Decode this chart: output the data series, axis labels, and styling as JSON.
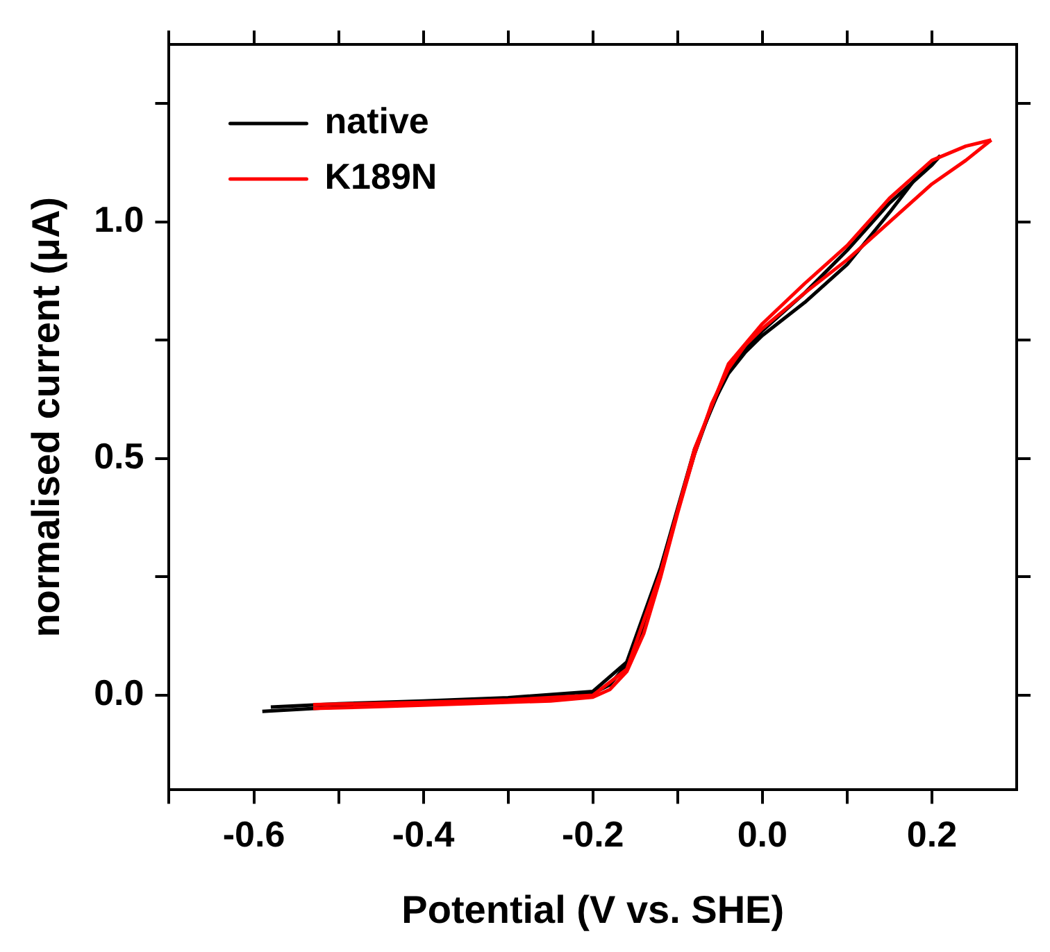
{
  "chart_data": {
    "type": "line",
    "xlabel": "Potential (V vs. SHE)",
    "ylabel": "normalised current (μA)",
    "xlim": [
      -0.7,
      0.3
    ],
    "xticks": [
      {
        "value": -0.7,
        "label": null
      },
      -0.6,
      {
        "value": -0.5,
        "label": null
      },
      -0.4,
      {
        "value": -0.3,
        "label": null
      },
      -0.2,
      {
        "value": -0.1,
        "label": null
      },
      {
        "value": 0,
        "label": "0.0"
      },
      {
        "value": 0.1,
        "label": null
      },
      0.2
    ],
    "ylim": [
      -0.2,
      1.375
    ],
    "yticks": [
      {
        "value": 0,
        "label": "0.0"
      },
      {
        "value": 0.25,
        "label": null
      },
      0.5,
      {
        "value": 0.75,
        "label": null
      },
      {
        "value": 1,
        "label": "1.0"
      },
      {
        "value": 1.25,
        "label": null
      }
    ],
    "grid": false,
    "legend": "top left",
    "marker": "none",
    "line_style": "solid",
    "series": [
      {
        "name": "native",
        "color": "#000000",
        "x": [
          -0.59,
          -0.55,
          -0.5,
          -0.4,
          -0.3,
          -0.22,
          -0.2,
          -0.18,
          -0.16,
          -0.14,
          -0.12,
          -0.1,
          -0.08,
          -0.06,
          -0.04,
          -0.02,
          0.0,
          0.05,
          0.1,
          0.15,
          0.18,
          0.21
        ],
        "values": [
          -0.034,
          -0.03,
          -0.025,
          -0.018,
          -0.01,
          -0.002,
          0.004,
          0.022,
          0.065,
          0.145,
          0.26,
          0.39,
          0.51,
          0.61,
          0.68,
          0.725,
          0.76,
          0.83,
          0.91,
          1.02,
          1.09,
          1.14
        ]
      },
      {
        "color": "#000000",
        "x": [
          0.21,
          0.2,
          0.15,
          0.1,
          0.05,
          0.0,
          -0.04,
          -0.08,
          -0.12,
          -0.16,
          -0.2,
          -0.3,
          -0.4,
          -0.5,
          -0.58
        ],
        "values": [
          1.14,
          1.12,
          1.04,
          0.94,
          0.85,
          0.77,
          0.69,
          0.52,
          0.27,
          0.07,
          0.008,
          -0.005,
          -0.012,
          -0.018,
          -0.025
        ]
      },
      {
        "name": "K189N",
        "color": "#ff0000",
        "x": [
          -0.53,
          -0.45,
          -0.35,
          -0.25,
          -0.2,
          -0.18,
          -0.16,
          -0.14,
          -0.12,
          -0.1,
          -0.08,
          -0.06,
          -0.04,
          -0.02,
          0.0,
          0.05,
          0.1,
          0.15,
          0.2,
          0.24,
          0.27
        ],
        "values": [
          -0.028,
          -0.024,
          -0.018,
          -0.012,
          -0.004,
          0.012,
          0.05,
          0.13,
          0.25,
          0.385,
          0.51,
          0.615,
          0.69,
          0.74,
          0.775,
          0.85,
          0.92,
          1.0,
          1.08,
          1.13,
          1.173
        ]
      },
      {
        "color": "#ff0000",
        "x": [
          0.27,
          0.24,
          0.2,
          0.15,
          0.1,
          0.05,
          0.0,
          -0.04,
          -0.08,
          -0.12,
          -0.16,
          -0.2,
          -0.3,
          -0.4,
          -0.53
        ],
        "values": [
          1.173,
          1.16,
          1.13,
          1.05,
          0.95,
          0.87,
          0.785,
          0.7,
          0.52,
          0.26,
          0.055,
          0.0,
          -0.01,
          -0.015,
          -0.02
        ]
      }
    ]
  }
}
